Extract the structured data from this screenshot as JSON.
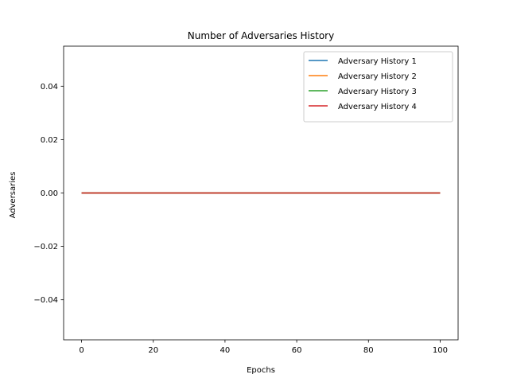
{
  "chart_data": {
    "type": "line",
    "title": "Number of Adversaries History",
    "xlabel": "Epochs",
    "ylabel": "Adversaries",
    "xlim": [
      -5,
      105
    ],
    "ylim": [
      -0.055,
      0.055
    ],
    "xticks": [
      0,
      20,
      40,
      60,
      80,
      100
    ],
    "xtick_labels": [
      "0",
      "20",
      "40",
      "60",
      "80",
      "100"
    ],
    "yticks": [
      -0.04,
      -0.02,
      0.0,
      0.02,
      0.04
    ],
    "ytick_labels": [
      "−0.04",
      "−0.02",
      "0.00",
      "0.02",
      "0.04"
    ],
    "grid": false,
    "legend_position": "upper right",
    "x": [
      0,
      100
    ],
    "series": [
      {
        "name": "Adversary History 1",
        "color": "#1f77b4",
        "values": [
          0,
          0
        ]
      },
      {
        "name": "Adversary History 2",
        "color": "#ff7f0e",
        "values": [
          0,
          0
        ]
      },
      {
        "name": "Adversary History 3",
        "color": "#2ca02c",
        "values": [
          0,
          0
        ]
      },
      {
        "name": "Adversary History 4",
        "color": "#d62728",
        "values": [
          0,
          0
        ]
      }
    ]
  }
}
